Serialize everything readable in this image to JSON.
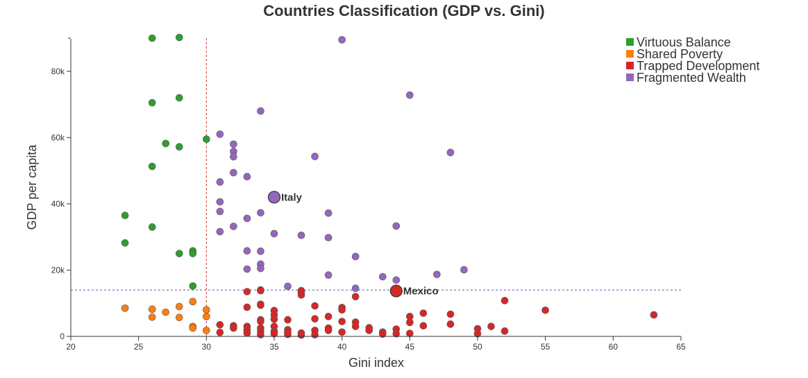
{
  "chart_data": {
    "type": "scatter",
    "title": "Countries Classification (GDP vs. Gini)",
    "xlabel": "Gini index",
    "ylabel": "GDP per capita",
    "xlim": [
      20,
      65
    ],
    "ylim": [
      0,
      90000
    ],
    "x_ticks": [
      20,
      25,
      30,
      35,
      40,
      45,
      50,
      55,
      60,
      65
    ],
    "x_tick_labels": [
      "20",
      "25",
      "30",
      "35",
      "40",
      "45",
      "50",
      "55",
      "60",
      "65"
    ],
    "y_ticks": [
      0,
      20000,
      40000,
      60000,
      80000
    ],
    "y_tick_labels": [
      "0",
      "20k",
      "40k",
      "60k",
      "80k"
    ],
    "grid": false,
    "legend_position": "top-right",
    "reference_lines": {
      "vertical_x": 30,
      "horizontal_y": 14000
    },
    "series": [
      {
        "name": "Virtuous Balance",
        "color": "#2ca02c",
        "points": [
          [
            26,
            90000
          ],
          [
            28,
            90200
          ],
          [
            26,
            70500
          ],
          [
            28,
            72000
          ],
          [
            27,
            58200
          ],
          [
            28,
            57200
          ],
          [
            30,
            59500
          ],
          [
            26,
            51300
          ],
          [
            24,
            36500
          ],
          [
            26,
            33000
          ],
          [
            24,
            28200
          ],
          [
            28,
            25000
          ],
          [
            29,
            25800
          ],
          [
            29,
            25000
          ],
          [
            29,
            15200
          ]
        ]
      },
      {
        "name": "Shared Poverty",
        "color": "#ff7f0e",
        "points": [
          [
            24,
            8500
          ],
          [
            26,
            8200
          ],
          [
            26,
            5800
          ],
          [
            27,
            7300
          ],
          [
            28,
            9000
          ],
          [
            28,
            5700
          ],
          [
            29,
            10500
          ],
          [
            29,
            3000
          ],
          [
            29,
            2500
          ],
          [
            30,
            8000
          ],
          [
            30,
            6000
          ],
          [
            30,
            1800
          ]
        ]
      },
      {
        "name": "Trapped Development",
        "color": "#d62728",
        "points": [
          [
            31,
            3500
          ],
          [
            31,
            1200
          ],
          [
            32,
            3200
          ],
          [
            32,
            2500
          ],
          [
            33,
            13500
          ],
          [
            33,
            8800
          ],
          [
            33,
            3000
          ],
          [
            33,
            2000
          ],
          [
            33,
            1000
          ],
          [
            34,
            14000
          ],
          [
            34,
            13800
          ],
          [
            34,
            9700
          ],
          [
            34,
            9400
          ],
          [
            34,
            5000
          ],
          [
            34,
            4500
          ],
          [
            34,
            2500
          ],
          [
            34,
            1500
          ],
          [
            34,
            500
          ],
          [
            35,
            7800
          ],
          [
            35,
            6500
          ],
          [
            35,
            5200
          ],
          [
            35,
            3000
          ],
          [
            35,
            1500
          ],
          [
            35,
            800
          ],
          [
            36,
            5000
          ],
          [
            36,
            2000
          ],
          [
            36,
            1200
          ],
          [
            36,
            600
          ],
          [
            37,
            13800
          ],
          [
            37,
            13200
          ],
          [
            37,
            12500
          ],
          [
            37,
            1000
          ],
          [
            37,
            400
          ],
          [
            38,
            9200
          ],
          [
            38,
            5300
          ],
          [
            38,
            1800
          ],
          [
            38,
            500
          ],
          [
            39,
            6000
          ],
          [
            39,
            2500
          ],
          [
            39,
            1800
          ],
          [
            40,
            8700
          ],
          [
            40,
            8000
          ],
          [
            40,
            4500
          ],
          [
            40,
            1300
          ],
          [
            41,
            12000
          ],
          [
            41,
            4300
          ],
          [
            41,
            3000
          ],
          [
            42,
            2600
          ],
          [
            42,
            1800
          ],
          [
            43,
            1300
          ],
          [
            43,
            700
          ],
          [
            44,
            2200
          ],
          [
            44,
            800
          ],
          [
            45,
            6000
          ],
          [
            45,
            4200
          ],
          [
            45,
            900
          ],
          [
            46,
            7000
          ],
          [
            46,
            3200
          ],
          [
            48,
            6700
          ],
          [
            48,
            3700
          ],
          [
            50,
            2300
          ],
          [
            50,
            800
          ],
          [
            51,
            3000
          ],
          [
            52,
            10800
          ],
          [
            52,
            1600
          ],
          [
            55,
            7900
          ],
          [
            63,
            6500
          ]
        ]
      },
      {
        "name": "Fragmented Wealth",
        "color": "#9467bd",
        "points": [
          [
            40,
            89500
          ],
          [
            45,
            72800
          ],
          [
            34,
            68000
          ],
          [
            31,
            61000
          ],
          [
            32,
            58000
          ],
          [
            32,
            55800
          ],
          [
            32,
            54200
          ],
          [
            38,
            54300
          ],
          [
            48,
            55500
          ],
          [
            32,
            49400
          ],
          [
            33,
            48200
          ],
          [
            31,
            46600
          ],
          [
            31,
            40600
          ],
          [
            31,
            37700
          ],
          [
            34,
            37300
          ],
          [
            39,
            37200
          ],
          [
            33,
            35600
          ],
          [
            32,
            33200
          ],
          [
            44,
            33300
          ],
          [
            31,
            31600
          ],
          [
            35,
            31000
          ],
          [
            37,
            30500
          ],
          [
            39,
            29800
          ],
          [
            33,
            25800
          ],
          [
            34,
            25700
          ],
          [
            41,
            24100
          ],
          [
            34,
            21800
          ],
          [
            34,
            20500
          ],
          [
            33,
            20300
          ],
          [
            49,
            20100
          ],
          [
            47,
            18700
          ],
          [
            39,
            18500
          ],
          [
            43,
            18000
          ],
          [
            44,
            17000
          ],
          [
            36,
            15100
          ],
          [
            41,
            14500
          ]
        ]
      }
    ],
    "annotations": [
      {
        "label": "Italy",
        "x": 35,
        "y": 42000,
        "color": "#9467bd"
      },
      {
        "label": "Mexico",
        "x": 44,
        "y": 13700,
        "color": "#d62728"
      }
    ]
  }
}
